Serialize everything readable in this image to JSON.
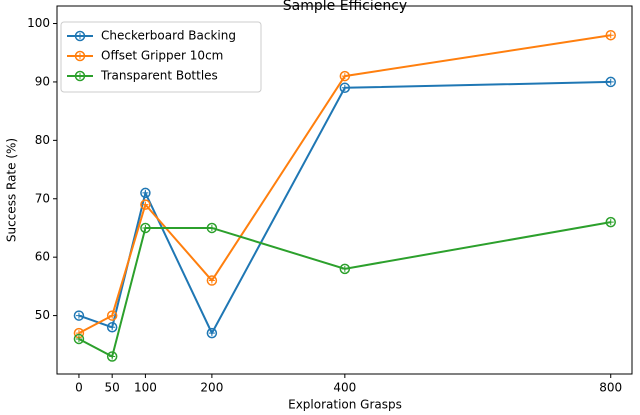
{
  "chart_data": {
    "type": "line",
    "title": "Sample Efficiency",
    "x_label": "Exploration Grasps",
    "y_label": "Success Rate (%)",
    "x": [
      0,
      50,
      100,
      200,
      400,
      800
    ],
    "series": [
      {
        "name": "Checkerboard Backing",
        "color": "#1f77b4",
        "values": [
          50,
          48,
          71,
          47,
          89,
          90
        ]
      },
      {
        "name": "Offset Gripper 10cm",
        "color": "#ff7f0e",
        "values": [
          47,
          50,
          69,
          56,
          91,
          98
        ]
      },
      {
        "name": "Transparent Bottles",
        "color": "#2ca02c",
        "values": [
          46,
          43,
          65,
          65,
          58,
          66
        ]
      }
    ],
    "xlim": [
      -33,
      832
    ],
    "xticks": [
      0,
      50,
      100,
      200,
      400,
      800
    ],
    "ylim": [
      40,
      103
    ],
    "yticks": [
      50,
      60,
      70,
      80,
      90,
      100
    ],
    "legend": "upper left"
  }
}
